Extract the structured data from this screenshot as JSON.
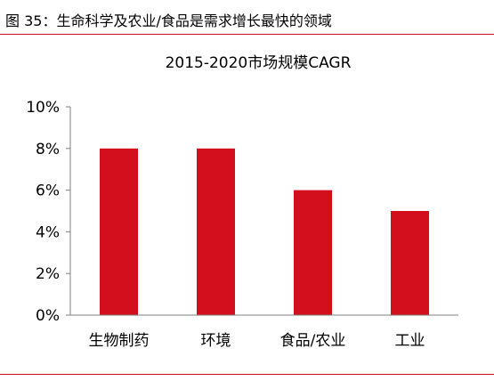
{
  "figure_title": "图 35：生命科学及农业/食品是需求增长最快的领域",
  "colors": {
    "bar": "#d40f1d",
    "rule": "#c8102e",
    "axis": "#7f7f7f"
  },
  "chart_data": {
    "type": "bar",
    "title": "2015-2020市场规模CAGR",
    "categories": [
      "生物制药",
      "环境",
      "食品/农业",
      "工业"
    ],
    "values": [
      8,
      8,
      6,
      5
    ],
    "unit": "%",
    "xlabel": "",
    "ylabel": "",
    "ylim": [
      0,
      10
    ],
    "yticks": [
      0,
      2,
      4,
      6,
      8,
      10
    ],
    "ytick_labels": [
      "0%",
      "2%",
      "4%",
      "6%",
      "8%",
      "10%"
    ],
    "grid": false,
    "legend": "none"
  }
}
